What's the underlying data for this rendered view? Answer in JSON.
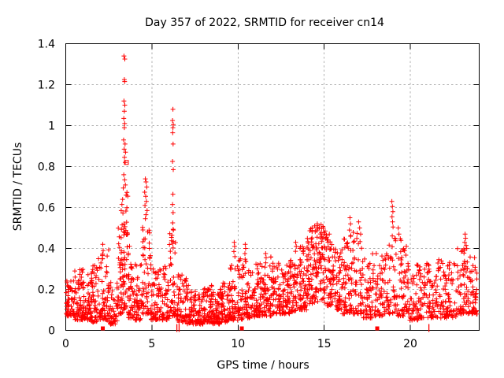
{
  "canvas": {
    "background": "#ffffff"
  },
  "chart_data": {
    "type": "scatter",
    "title": "Day 357 of 2022, SRMTID for receiver cn14",
    "xlabel": "GPS time / hours",
    "ylabel": "SRMTID / TECUs",
    "xlim": [
      0,
      24
    ],
    "ylim": [
      0,
      1.4
    ],
    "grid": true,
    "legend": "none",
    "marker": {
      "shape": "plus",
      "size": 7
    },
    "colors": {
      "marker": "#ff0000",
      "grid": "#b0b0b0",
      "axis": "#000000",
      "background": "#ffffff",
      "text": "#000000"
    },
    "xticks": [
      {
        "v": 0,
        "label": "0"
      },
      {
        "v": 5,
        "label": "5"
      },
      {
        "v": 10,
        "label": "10"
      },
      {
        "v": 15,
        "label": "15"
      },
      {
        "v": 20,
        "label": "20"
      }
    ],
    "yticks": [
      {
        "v": 0,
        "label": "0"
      },
      {
        "v": 0.2,
        "label": "0.2"
      },
      {
        "v": 0.4,
        "label": "0.4"
      },
      {
        "v": 0.6,
        "label": "0.6"
      },
      {
        "v": 0.8,
        "label": "0.8"
      },
      {
        "v": 1,
        "label": "1"
      },
      {
        "v": 1.2,
        "label": "1.2"
      },
      {
        "v": 1.4,
        "label": "1.4"
      }
    ],
    "seed": 357,
    "description": "Dense noise band of SRMTID values 0.03-0.35 TECU across 0-24 h GPS time with large spikes near 3.4 h (max 1.34), 4.7 h (max 0.74), 6.2 h (max 1.08), elevated activity 14-15.5 h (~0.5), 19 h (0.63) and 23.2 h (0.47).",
    "noise_bins": [
      [
        0.02,
        0.5,
        0.07,
        0.26,
        55,
        1.8
      ],
      [
        0.5,
        1.0,
        0.05,
        0.3,
        60,
        1.8
      ],
      [
        1.0,
        1.5,
        0.05,
        0.28,
        55,
        1.8
      ],
      [
        1.5,
        2.0,
        0.04,
        0.33,
        55,
        1.8
      ],
      [
        2.0,
        2.5,
        0.05,
        0.4,
        55,
        1.9
      ],
      [
        2.5,
        3.0,
        0.03,
        0.24,
        50,
        1.8
      ],
      [
        3.0,
        3.3,
        0.08,
        0.55,
        42,
        1.7
      ],
      [
        3.3,
        3.62,
        0.1,
        0.68,
        48,
        1.5
      ],
      [
        3.62,
        3.9,
        0.06,
        0.42,
        40,
        1.8
      ],
      [
        3.9,
        4.4,
        0.05,
        0.33,
        50,
        1.8
      ],
      [
        4.4,
        4.95,
        0.08,
        0.52,
        58,
        1.6
      ],
      [
        4.95,
        5.4,
        0.05,
        0.3,
        48,
        1.8
      ],
      [
        5.4,
        6.0,
        0.05,
        0.34,
        58,
        1.8
      ],
      [
        6.0,
        6.4,
        0.07,
        0.5,
        45,
        1.6
      ],
      [
        6.4,
        7.0,
        0.04,
        0.28,
        58,
        1.9
      ],
      [
        7.0,
        7.5,
        0.03,
        0.22,
        50,
        1.8
      ],
      [
        7.5,
        8.0,
        0.03,
        0.2,
        55,
        1.8
      ],
      [
        8.0,
        8.5,
        0.04,
        0.22,
        60,
        1.8
      ],
      [
        8.5,
        9.0,
        0.03,
        0.2,
        58,
        1.8
      ],
      [
        9.0,
        9.5,
        0.04,
        0.24,
        55,
        1.8
      ],
      [
        9.5,
        10.0,
        0.05,
        0.33,
        55,
        1.8
      ],
      [
        10.0,
        10.5,
        0.05,
        0.35,
        55,
        1.8
      ],
      [
        10.5,
        11.0,
        0.06,
        0.32,
        55,
        1.8
      ],
      [
        11.0,
        11.5,
        0.07,
        0.33,
        55,
        1.8
      ],
      [
        11.5,
        12.0,
        0.07,
        0.36,
        55,
        1.8
      ],
      [
        12.0,
        12.5,
        0.08,
        0.33,
        55,
        1.7
      ],
      [
        12.5,
        13.0,
        0.08,
        0.32,
        55,
        1.7
      ],
      [
        13.0,
        13.5,
        0.09,
        0.4,
        55,
        1.7
      ],
      [
        13.5,
        14.0,
        0.1,
        0.42,
        60,
        1.6
      ],
      [
        14.0,
        14.5,
        0.13,
        0.5,
        65,
        1.4
      ],
      [
        14.5,
        15.0,
        0.14,
        0.52,
        65,
        1.4
      ],
      [
        15.0,
        15.5,
        0.12,
        0.48,
        60,
        1.5
      ],
      [
        15.5,
        16.0,
        0.1,
        0.42,
        55,
        1.6
      ],
      [
        16.0,
        16.5,
        0.08,
        0.45,
        55,
        1.7
      ],
      [
        16.5,
        17.2,
        0.08,
        0.48,
        65,
        1.7
      ],
      [
        17.2,
        17.8,
        0.06,
        0.35,
        55,
        1.8
      ],
      [
        17.8,
        18.5,
        0.07,
        0.38,
        60,
        1.8
      ],
      [
        18.5,
        19.2,
        0.08,
        0.48,
        60,
        1.6
      ],
      [
        19.2,
        19.8,
        0.07,
        0.45,
        55,
        1.7
      ],
      [
        19.8,
        20.5,
        0.05,
        0.33,
        60,
        1.8
      ],
      [
        20.5,
        21.2,
        0.06,
        0.33,
        60,
        1.8
      ],
      [
        21.2,
        22.0,
        0.06,
        0.35,
        65,
        1.8
      ],
      [
        22.0,
        22.7,
        0.06,
        0.34,
        60,
        1.8
      ],
      [
        22.7,
        23.3,
        0.08,
        0.4,
        55,
        1.7
      ],
      [
        23.3,
        23.88,
        0.08,
        0.36,
        60,
        1.7
      ]
    ],
    "outlier_points": [
      [
        3.38,
        1.34
      ],
      [
        3.43,
        1.325
      ],
      [
        3.4,
        1.225
      ],
      [
        3.42,
        1.215
      ],
      [
        3.38,
        1.12
      ],
      [
        3.43,
        1.1
      ],
      [
        3.4,
        1.07
      ],
      [
        3.37,
        1.035
      ],
      [
        3.42,
        1.01
      ],
      [
        3.4,
        0.99
      ],
      [
        3.36,
        0.93
      ],
      [
        3.44,
        0.91
      ],
      [
        3.39,
        0.885
      ],
      [
        3.47,
        0.87
      ],
      [
        3.41,
        0.845
      ],
      [
        3.45,
        0.82
      ],
      [
        3.37,
        0.76
      ],
      [
        3.42,
        0.735
      ],
      [
        3.46,
        0.71
      ],
      [
        3.34,
        0.695
      ],
      [
        3.5,
        0.66
      ],
      [
        3.3,
        0.64
      ],
      [
        3.26,
        0.615
      ],
      [
        3.22,
        0.585
      ],
      [
        4.62,
        0.74
      ],
      [
        4.66,
        0.725
      ],
      [
        4.7,
        0.7
      ],
      [
        4.58,
        0.675
      ],
      [
        4.64,
        0.655
      ],
      [
        4.68,
        0.63
      ],
      [
        4.6,
        0.61
      ],
      [
        4.72,
        0.585
      ],
      [
        4.66,
        0.565
      ],
      [
        4.62,
        0.545
      ],
      [
        6.22,
        1.08
      ],
      [
        6.2,
        1.025
      ],
      [
        6.24,
        1.005
      ],
      [
        6.22,
        0.99
      ],
      [
        6.21,
        0.965
      ],
      [
        6.23,
        0.91
      ],
      [
        6.2,
        0.825
      ],
      [
        6.24,
        0.785
      ],
      [
        6.22,
        0.665
      ],
      [
        6.2,
        0.615
      ],
      [
        6.23,
        0.575
      ],
      [
        6.21,
        0.525
      ],
      [
        6.25,
        0.49
      ],
      [
        9.78,
        0.43
      ],
      [
        9.8,
        0.41
      ],
      [
        9.76,
        0.385
      ],
      [
        9.82,
        0.36
      ],
      [
        10.42,
        0.42
      ],
      [
        10.44,
        0.4
      ],
      [
        10.4,
        0.375
      ],
      [
        11.6,
        0.375
      ],
      [
        11.63,
        0.355
      ],
      [
        13.35,
        0.43
      ],
      [
        13.38,
        0.41
      ],
      [
        13.6,
        0.4
      ],
      [
        14.3,
        0.5
      ],
      [
        14.45,
        0.51
      ],
      [
        14.6,
        0.52
      ],
      [
        14.72,
        0.5
      ],
      [
        14.95,
        0.5
      ],
      [
        15.06,
        0.485
      ],
      [
        15.3,
        0.47
      ],
      [
        16.5,
        0.55
      ],
      [
        16.53,
        0.52
      ],
      [
        16.47,
        0.49
      ],
      [
        17.0,
        0.53
      ],
      [
        17.06,
        0.5
      ],
      [
        17.12,
        0.47
      ],
      [
        18.93,
        0.63
      ],
      [
        18.96,
        0.605
      ],
      [
        18.99,
        0.58
      ],
      [
        18.94,
        0.555
      ],
      [
        18.97,
        0.53
      ],
      [
        19.0,
        0.505
      ],
      [
        19.3,
        0.5
      ],
      [
        19.34,
        0.47
      ],
      [
        23.18,
        0.47
      ],
      [
        23.21,
        0.45
      ],
      [
        23.16,
        0.43
      ],
      [
        23.24,
        0.415
      ],
      [
        1.9,
        0.35
      ],
      [
        2.15,
        0.42
      ],
      [
        2.17,
        0.39
      ],
      [
        2.13,
        0.365
      ]
    ],
    "flagged_points": [
      [
        3.52,
        0.82
      ]
    ],
    "axis_marks": [
      {
        "x": 2.15,
        "style": "square"
      },
      {
        "x": 6.45,
        "style": "tick"
      },
      {
        "x": 6.58,
        "style": "tick"
      },
      {
        "x": 10.22,
        "style": "square"
      },
      {
        "x": 18.08,
        "style": "square"
      },
      {
        "x": 21.08,
        "style": "tick"
      }
    ]
  }
}
